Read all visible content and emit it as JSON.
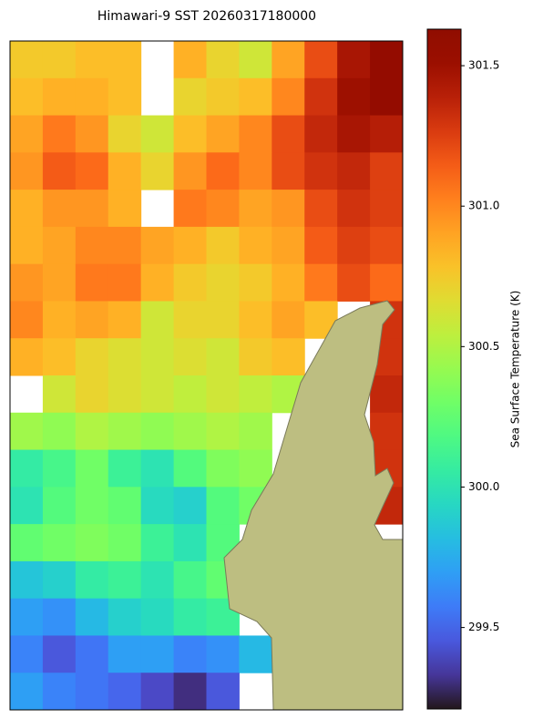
{
  "chart_data": {
    "type": "heatmap",
    "title": "Himawari-9 SST 20260317180000",
    "colorbar_label": "Sea Surface Temperature (K)",
    "cmap": "turbo",
    "vlim": [
      299.21,
      301.63
    ],
    "colorbar_ticks": [
      299.5,
      {
        "value": 300.0,
        "label": "300.0"
      },
      300.5,
      {
        "value": 301.0,
        "label": "301.0"
      },
      301.5
    ],
    "values": [
      [
        300.75,
        300.75,
        300.8,
        300.8,
        null,
        300.85,
        300.7,
        300.6,
        300.9,
        301.2,
        301.45,
        301.55
      ],
      [
        300.8,
        300.85,
        300.85,
        300.8,
        null,
        300.7,
        300.75,
        300.8,
        301.0,
        301.3,
        301.5,
        301.55
      ],
      [
        300.9,
        301.05,
        300.95,
        300.7,
        300.6,
        300.8,
        300.9,
        301.0,
        301.2,
        301.35,
        301.45,
        301.4
      ],
      [
        300.95,
        301.15,
        301.1,
        300.85,
        300.7,
        300.95,
        301.1,
        301.0,
        301.2,
        301.3,
        301.35,
        301.25
      ],
      [
        300.85,
        300.95,
        300.95,
        300.85,
        null,
        301.05,
        301.0,
        300.9,
        300.95,
        301.2,
        301.3,
        301.25
      ],
      [
        300.85,
        300.9,
        301.0,
        301.0,
        300.9,
        300.85,
        300.75,
        300.85,
        300.9,
        301.15,
        301.25,
        301.2
      ],
      [
        300.95,
        300.9,
        301.05,
        301.05,
        300.85,
        300.75,
        300.7,
        300.75,
        300.85,
        301.05,
        301.2,
        301.1
      ],
      [
        301.0,
        300.85,
        300.9,
        300.85,
        300.6,
        300.7,
        300.7,
        300.8,
        300.9,
        300.8,
        null,
        301.3
      ],
      [
        300.85,
        300.8,
        300.7,
        300.65,
        300.6,
        300.65,
        300.6,
        300.75,
        300.8,
        null,
        null,
        301.3
      ],
      [
        null,
        300.6,
        300.7,
        300.65,
        300.6,
        300.55,
        300.6,
        300.55,
        300.5,
        null,
        null,
        301.35
      ],
      [
        300.45,
        300.4,
        300.5,
        300.45,
        300.4,
        300.45,
        300.5,
        300.45,
        null,
        null,
        null,
        301.3
      ],
      [
        300.05,
        300.15,
        300.3,
        300.1,
        300.0,
        300.2,
        300.35,
        300.4,
        null,
        null,
        null,
        301.3
      ],
      [
        300.0,
        300.2,
        300.3,
        300.25,
        299.95,
        299.9,
        300.2,
        300.3,
        null,
        null,
        null,
        301.35
      ],
      [
        300.25,
        300.3,
        300.35,
        300.3,
        300.1,
        300.0,
        300.2,
        null,
        null,
        null,
        null,
        null
      ],
      [
        299.85,
        299.9,
        300.05,
        300.1,
        300.0,
        300.15,
        300.25,
        null,
        null,
        null,
        null,
        null
      ],
      [
        299.7,
        299.65,
        299.8,
        299.9,
        299.95,
        300.05,
        300.1,
        null,
        null,
        null,
        null,
        null
      ],
      [
        299.6,
        299.45,
        299.55,
        299.7,
        299.7,
        299.6,
        299.65,
        299.8,
        null,
        null,
        null,
        null
      ],
      [
        299.7,
        299.6,
        299.55,
        299.5,
        299.4,
        299.3,
        299.45,
        null,
        null,
        null,
        null,
        null
      ]
    ]
  }
}
